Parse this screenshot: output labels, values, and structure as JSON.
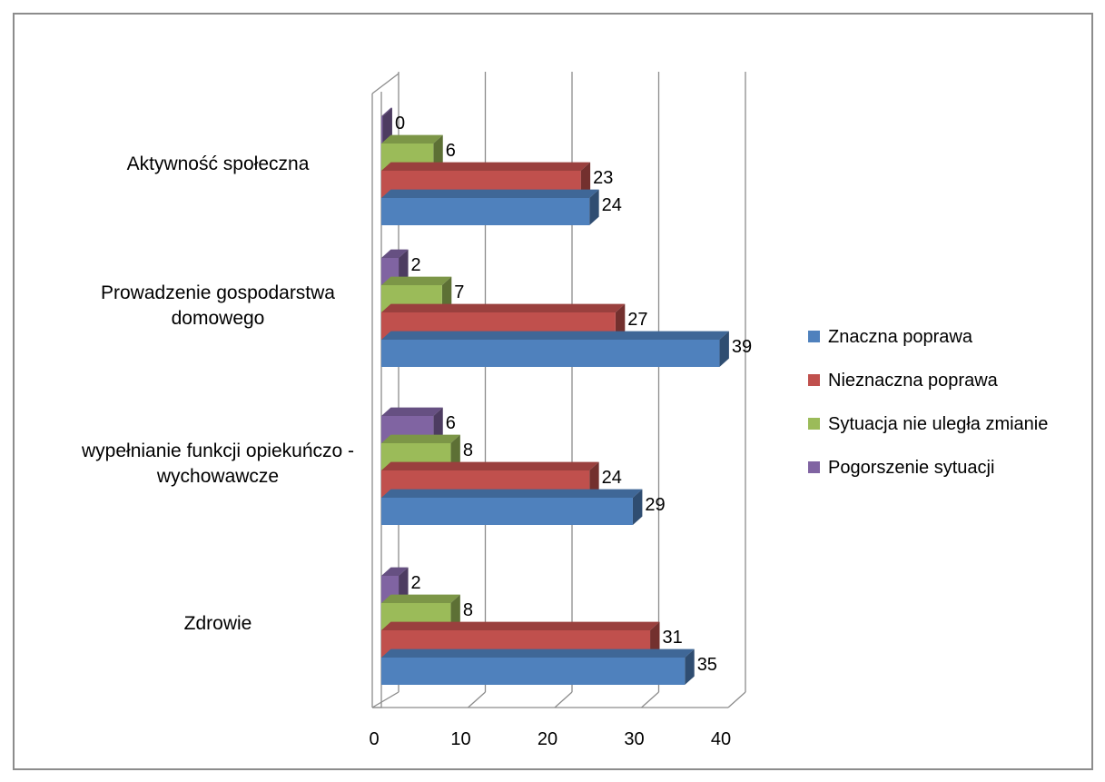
{
  "chart_data": {
    "type": "bar",
    "orientation": "horizontal",
    "style": "3d-clustered",
    "title": "",
    "xlabel": "",
    "ylabel": "",
    "xlim": [
      0,
      40
    ],
    "x_ticks": [
      0,
      10,
      20,
      30,
      40
    ],
    "grid": true,
    "legend_position": "right",
    "categories": [
      {
        "label": "Aktywność społeczna",
        "lines": [
          "Aktywność społeczna"
        ]
      },
      {
        "label": "Prowadzenie gospodarstwa domowego",
        "lines": [
          "Prowadzenie gospodarstwa",
          "domowego"
        ]
      },
      {
        "label": "wypełnianie funkcji opiekuńczo - wychowawcze",
        "lines": [
          "wypełnianie funkcji opiekuńczo -",
          "wychowawcze"
        ]
      },
      {
        "label": "Zdrowie",
        "lines": [
          "Zdrowie"
        ]
      }
    ],
    "series": [
      {
        "name": "Pogorszenie sytuacji",
        "color": "#8064a2",
        "values": [
          0,
          2,
          6,
          2
        ]
      },
      {
        "name": "Sytuacja nie uległa zmianie",
        "color": "#9bbb59",
        "values": [
          6,
          7,
          8,
          8
        ]
      },
      {
        "name": "Nieznaczna poprawa",
        "color": "#c0504d",
        "values": [
          23,
          27,
          24,
          31
        ]
      },
      {
        "name": "Znaczna poprawa",
        "color": "#4f81bd",
        "values": [
          24,
          39,
          29,
          35
        ]
      }
    ]
  }
}
